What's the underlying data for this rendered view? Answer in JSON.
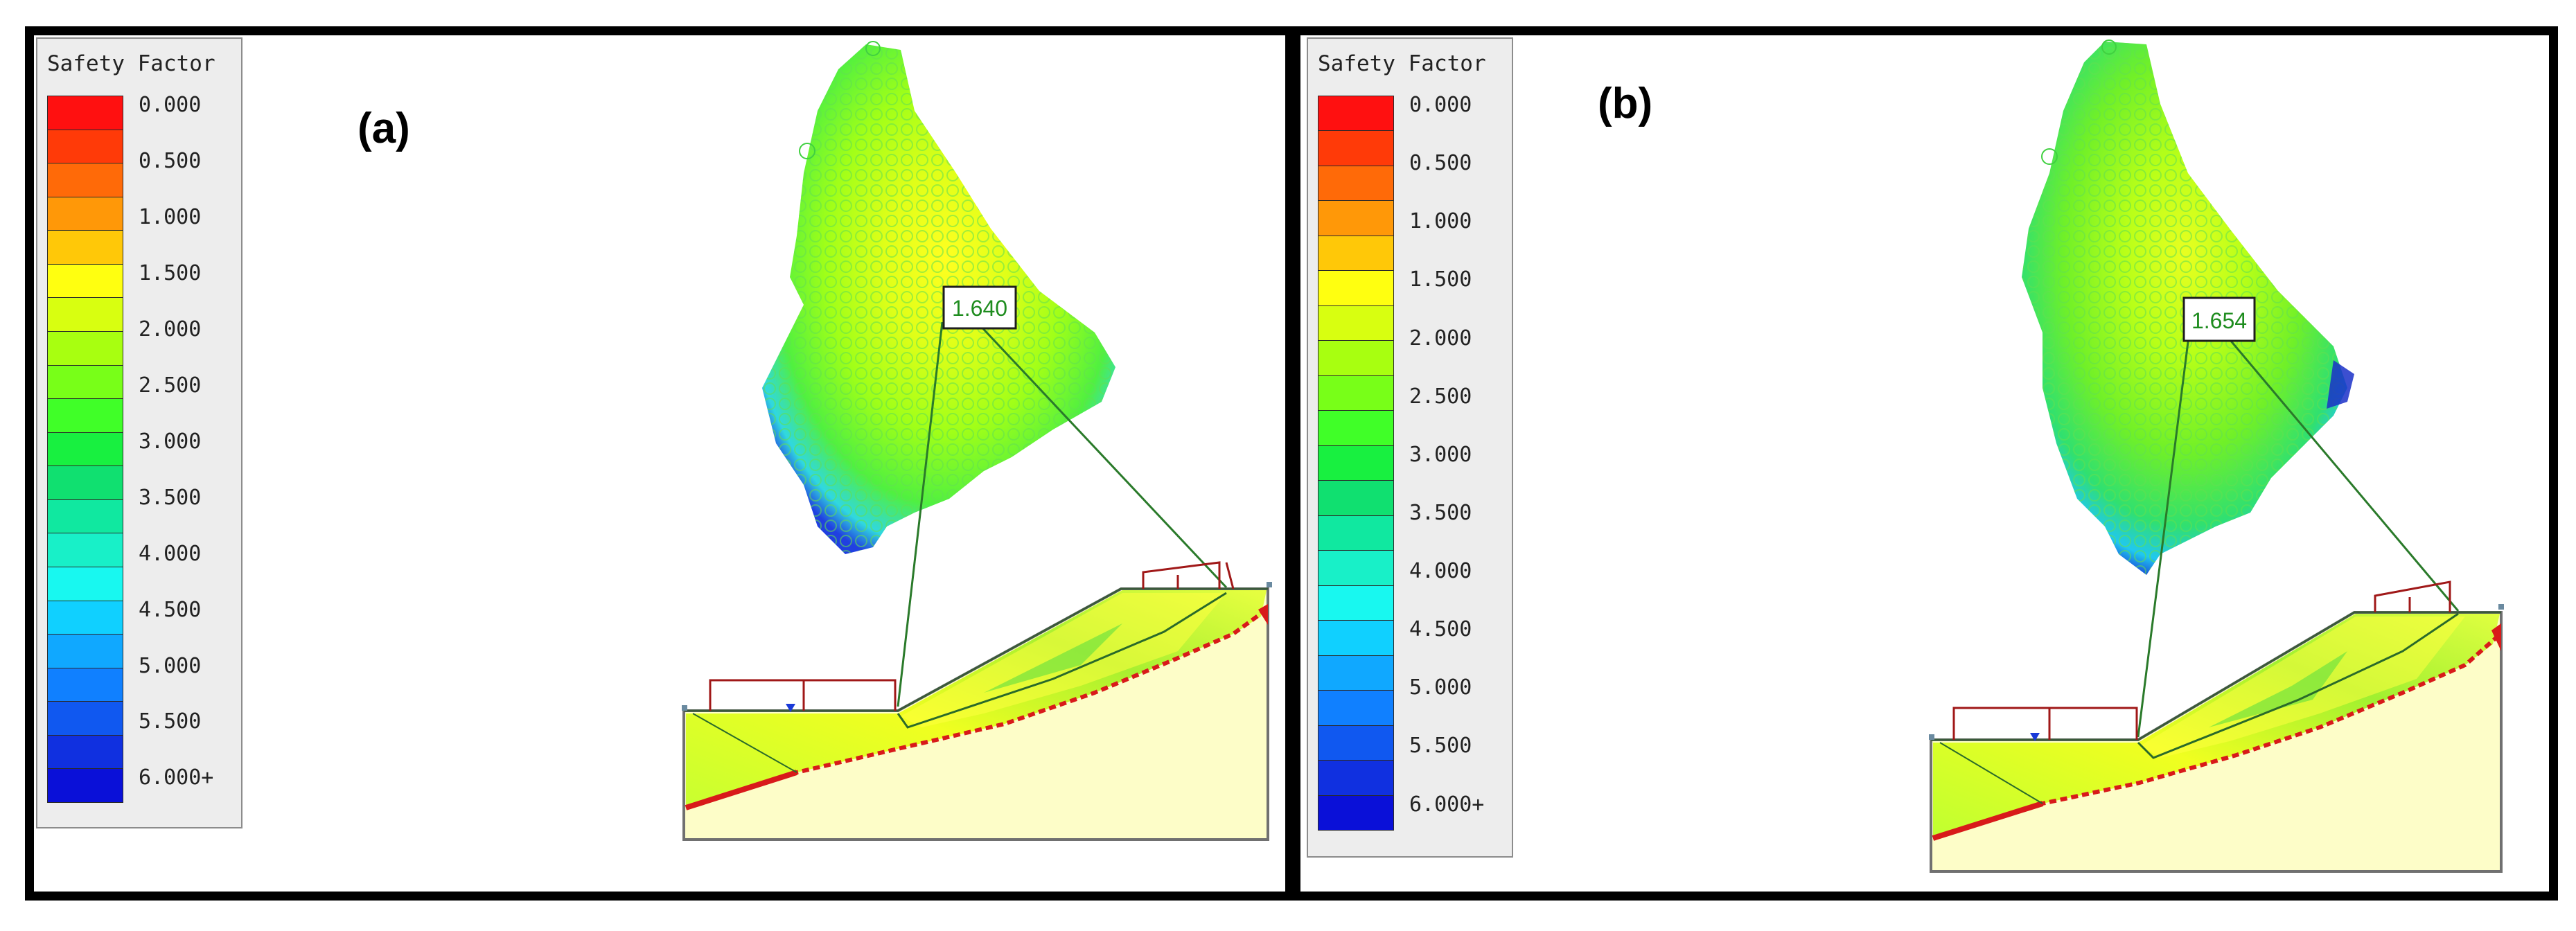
{
  "legend": {
    "title": "Safety Factor",
    "labels": [
      "0.000",
      "0.500",
      "1.000",
      "1.500",
      "2.000",
      "2.500",
      "3.000",
      "3.500",
      "4.000",
      "4.500",
      "5.000",
      "5.500",
      "6.000+"
    ],
    "colors": [
      "#ff1010",
      "#ff3a08",
      "#ff6a08",
      "#ff9808",
      "#ffc808",
      "#ffff10",
      "#d8ff10",
      "#a8ff10",
      "#78ff18",
      "#40ff28",
      "#18f040",
      "#10e070",
      "#10e8a0",
      "#18f0c8",
      "#18f8f0",
      "#10d0ff",
      "#10a8ff",
      "#1080ff",
      "#1058f0",
      "#1030e0",
      "#0a10d8"
    ]
  },
  "panels": [
    {
      "label": "(a)",
      "fs_value": "1.640"
    },
    {
      "label": "(b)",
      "fs_value": "1.654"
    }
  ],
  "colors": {
    "frame": "#000000",
    "slope_fill": "#fdfdc8",
    "slip_surface_red": "#d81a1a",
    "leader_line": "#2a7a2a",
    "load_red": "#a01818"
  },
  "icons": [
    "water-table-marker-icon",
    "grid-center-icon"
  ]
}
